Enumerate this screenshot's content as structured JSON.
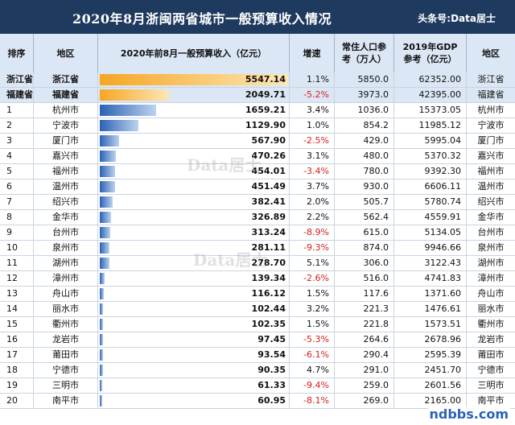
{
  "title": "2020年8月浙闽两省城市一般预算收入情况",
  "source": "头条号:Data居士",
  "headers": {
    "rank": "排序",
    "name": "地区",
    "revenue": "2020年前8月一般预算收入（亿元）",
    "growth": "增速",
    "population": "常住人口参考（万人）",
    "gdp": "2019年GDP参考（亿元）",
    "name2": "地区"
  },
  "watermark": "Data居士",
  "site_logo": "ndbbs.com",
  "chart_data": {
    "type": "table",
    "title": "2020年8月浙闽两省城市一般预算收入情况",
    "xlim": [
      0,
      5547.14
    ],
    "rows": [
      {
        "rank": "浙江省",
        "name": "浙江省",
        "value": 5547.14,
        "value_label": "5547.14",
        "growth": "1.1%",
        "population": "5850.0",
        "gdp": "62352.00",
        "kind": "prov"
      },
      {
        "rank": "福建省",
        "name": "福建省",
        "value": 2049.71,
        "value_label": "2049.71",
        "growth": "-5.2%",
        "population": "3973.0",
        "gdp": "42395.00",
        "kind": "prov"
      },
      {
        "rank": "1",
        "name": "杭州市",
        "value": 1659.21,
        "value_label": "1659.21",
        "growth": "3.4%",
        "population": "1036.0",
        "gdp": "15373.05",
        "kind": "city"
      },
      {
        "rank": "2",
        "name": "宁波市",
        "value": 1129.9,
        "value_label": "1129.90",
        "growth": "1.0%",
        "population": "854.2",
        "gdp": "11985.12",
        "kind": "city"
      },
      {
        "rank": "3",
        "name": "厦门市",
        "value": 567.9,
        "value_label": "567.90",
        "growth": "-2.5%",
        "population": "429.0",
        "gdp": "5995.04",
        "kind": "city"
      },
      {
        "rank": "4",
        "name": "嘉兴市",
        "value": 470.26,
        "value_label": "470.26",
        "growth": "3.1%",
        "population": "480.0",
        "gdp": "5370.32",
        "kind": "city"
      },
      {
        "rank": "5",
        "name": "福州市",
        "value": 454.01,
        "value_label": "454.01",
        "growth": "-3.4%",
        "population": "780.0",
        "gdp": "9392.30",
        "kind": "city"
      },
      {
        "rank": "6",
        "name": "温州市",
        "value": 451.49,
        "value_label": "451.49",
        "growth": "3.7%",
        "population": "930.0",
        "gdp": "6606.11",
        "kind": "city"
      },
      {
        "rank": "7",
        "name": "绍兴市",
        "value": 382.41,
        "value_label": "382.41",
        "growth": "2.0%",
        "population": "505.7",
        "gdp": "5780.74",
        "kind": "city"
      },
      {
        "rank": "8",
        "name": "金华市",
        "value": 326.89,
        "value_label": "326.89",
        "growth": "2.2%",
        "population": "562.4",
        "gdp": "4559.91",
        "kind": "city"
      },
      {
        "rank": "9",
        "name": "台州市",
        "value": 313.24,
        "value_label": "313.24",
        "growth": "-8.9%",
        "population": "615.0",
        "gdp": "5134.05",
        "kind": "city"
      },
      {
        "rank": "10",
        "name": "泉州市",
        "value": 281.11,
        "value_label": "281.11",
        "growth": "-9.3%",
        "population": "874.0",
        "gdp": "9946.66",
        "kind": "city"
      },
      {
        "rank": "11",
        "name": "湖州市",
        "value": 278.7,
        "value_label": "278.70",
        "growth": "5.1%",
        "population": "306.0",
        "gdp": "3122.43",
        "kind": "city"
      },
      {
        "rank": "12",
        "name": "漳州市",
        "value": 139.34,
        "value_label": "139.34",
        "growth": "-2.6%",
        "population": "516.0",
        "gdp": "4741.83",
        "kind": "city"
      },
      {
        "rank": "13",
        "name": "舟山市",
        "value": 116.12,
        "value_label": "116.12",
        "growth": "1.5%",
        "population": "117.6",
        "gdp": "1371.60",
        "kind": "city"
      },
      {
        "rank": "14",
        "name": "丽水市",
        "value": 102.44,
        "value_label": "102.44",
        "growth": "3.2%",
        "population": "221.3",
        "gdp": "1476.61",
        "kind": "city"
      },
      {
        "rank": "15",
        "name": "衢州市",
        "value": 102.35,
        "value_label": "102.35",
        "growth": "1.5%",
        "population": "221.8",
        "gdp": "1573.51",
        "kind": "city"
      },
      {
        "rank": "16",
        "name": "龙岩市",
        "value": 97.45,
        "value_label": "97.45",
        "growth": "-5.3%",
        "population": "264.6",
        "gdp": "2678.96",
        "kind": "city"
      },
      {
        "rank": "17",
        "name": "莆田市",
        "value": 93.54,
        "value_label": "93.54",
        "growth": "-6.1%",
        "population": "290.4",
        "gdp": "2595.39",
        "kind": "city"
      },
      {
        "rank": "18",
        "name": "宁德市",
        "value": 90.35,
        "value_label": "90.35",
        "growth": "4.7%",
        "population": "291.0",
        "gdp": "2451.70",
        "kind": "city"
      },
      {
        "rank": "19",
        "name": "三明市",
        "value": 61.33,
        "value_label": "61.33",
        "growth": "-9.4%",
        "population": "259.0",
        "gdp": "2601.56",
        "kind": "city"
      },
      {
        "rank": "20",
        "name": "南平市",
        "value": 60.95,
        "value_label": "60.95",
        "growth": "-8.1%",
        "population": "269.0",
        "gdp": "2165.00",
        "kind": "city"
      }
    ]
  }
}
